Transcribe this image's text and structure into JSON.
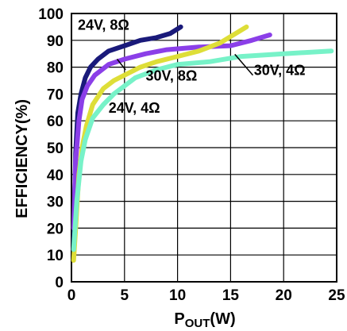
{
  "chart_data": {
    "type": "line",
    "xlabel_prefix": "P",
    "xlabel_sub": "OUT",
    "xlabel_suffix": "(W)",
    "ylabel": "EFFICIENCY(%)",
    "xlim": [
      0,
      25
    ],
    "ylim": [
      0,
      100
    ],
    "x_ticks": [
      0,
      5,
      10,
      15,
      20,
      25
    ],
    "y_ticks": [
      0,
      10,
      20,
      30,
      40,
      50,
      60,
      70,
      80,
      90,
      100
    ],
    "grid": true,
    "series": [
      {
        "name": "24V, 8Ω",
        "color": "#1a1a7a",
        "points": [
          [
            0.2,
            12
          ],
          [
            0.4,
            48
          ],
          [
            0.6,
            63
          ],
          [
            0.9,
            70
          ],
          [
            1.3,
            76
          ],
          [
            1.8,
            80
          ],
          [
            2.5,
            83
          ],
          [
            3.5,
            86
          ],
          [
            5,
            88
          ],
          [
            6.5,
            90
          ],
          [
            8,
            91
          ],
          [
            9.3,
            92.5
          ],
          [
            10.3,
            95
          ]
        ]
      },
      {
        "name": "30V, 8Ω",
        "color": "#8b3fe8",
        "points": [
          [
            0.2,
            20
          ],
          [
            0.4,
            45
          ],
          [
            0.7,
            60
          ],
          [
            1.0,
            68
          ],
          [
            1.5,
            73
          ],
          [
            2.2,
            77
          ],
          [
            3.5,
            81
          ],
          [
            5,
            83
          ],
          [
            7,
            85
          ],
          [
            9,
            86.5
          ],
          [
            12,
            87.5
          ],
          [
            15,
            88
          ],
          [
            17,
            90
          ],
          [
            18.7,
            92
          ]
        ]
      },
      {
        "name": "24V, 4Ω",
        "color": "#dede38",
        "points": [
          [
            0.2,
            8
          ],
          [
            0.4,
            20
          ],
          [
            0.7,
            40
          ],
          [
            1.0,
            50
          ],
          [
            1.4,
            58
          ],
          [
            2,
            66
          ],
          [
            3,
            72
          ],
          [
            4,
            75
          ],
          [
            5,
            77
          ],
          [
            6.5,
            80
          ],
          [
            8,
            82
          ],
          [
            10,
            84
          ],
          [
            12,
            86
          ],
          [
            14,
            89
          ],
          [
            16.5,
            95
          ]
        ]
      },
      {
        "name": "30V, 4Ω",
        "color": "#77f2c8",
        "points": [
          [
            0.2,
            12
          ],
          [
            0.5,
            30
          ],
          [
            0.9,
            45
          ],
          [
            1.3,
            53
          ],
          [
            2,
            61
          ],
          [
            3,
            66
          ],
          [
            4,
            70
          ],
          [
            6,
            76
          ],
          [
            8,
            79
          ],
          [
            10,
            81
          ],
          [
            13,
            82
          ],
          [
            16,
            84
          ],
          [
            20,
            85
          ],
          [
            24.5,
            86
          ]
        ]
      }
    ],
    "annotations": [
      {
        "text": "24V, 8Ω",
        "x": 0.6,
        "y": 94
      },
      {
        "text": "30V, 8Ω",
        "x": 7,
        "y": 75
      },
      {
        "text": "24V, 4Ω",
        "x": 3.5,
        "y": 63
      },
      {
        "text": "30V, 4Ω",
        "x": 17.2,
        "y": 77
      }
    ],
    "leaders": [
      {
        "from": [
          5.1,
          79
        ],
        "to": [
          4.3,
          83
        ]
      },
      {
        "from": [
          17.1,
          77
        ],
        "to": [
          15.4,
          84.8
        ]
      }
    ]
  }
}
